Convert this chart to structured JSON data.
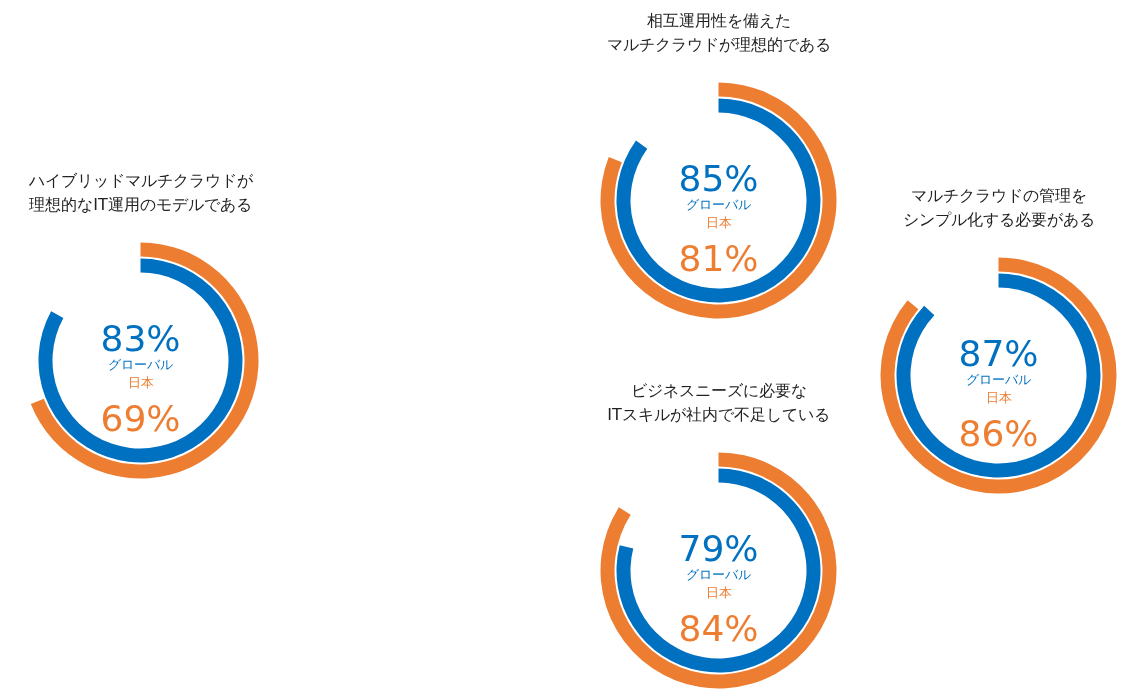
{
  "chart_data": [
    {
      "type": "donut",
      "title": "相互運用性を備えたマルチクラウドが理想的である",
      "series": [
        {
          "name": "日本",
          "color": "#ed7d31",
          "values": [
            81
          ],
          "value_labels": [
            "81%"
          ]
        },
        {
          "name": "グローバル",
          "color": "#0070c0",
          "values": [
            85
          ],
          "value_labels": [
            "85%"
          ]
        }
      ]
    },
    {
      "type": "donut",
      "title": "ハイブリッドマルチクラウドが理想的なIT運用のモデルである",
      "series": [
        {
          "name": "日本",
          "color": "#ed7d31",
          "values": [
            69
          ],
          "value_labels": [
            "69%"
          ]
        },
        {
          "name": "グローバル",
          "color": "#0070c0",
          "values": [
            83
          ],
          "value_labels": [
            "83%"
          ]
        }
      ]
    },
    {
      "type": "donut",
      "title": "マルチクラウドの管理をシンプル化する必要がある",
      "series": [
        {
          "name": "日本",
          "color": "#ed7d31",
          "values": [
            86
          ],
          "value_labels": [
            "86%"
          ]
        },
        {
          "name": "グローバル",
          "color": "#0070c0",
          "values": [
            87
          ],
          "value_labels": [
            "87%"
          ]
        }
      ]
    },
    {
      "type": "donut",
      "title": "ビジネスニーズに必要なITスキルが社内で不足している",
      "series": [
        {
          "name": "日本",
          "color": "#ed7d31",
          "values": [
            84
          ],
          "value_labels": [
            "84%"
          ]
        },
        {
          "name": "グローバル",
          "color": "#0070c0",
          "values": [
            79
          ],
          "value_labels": [
            "79%"
          ]
        }
      ]
    }
  ]
}
